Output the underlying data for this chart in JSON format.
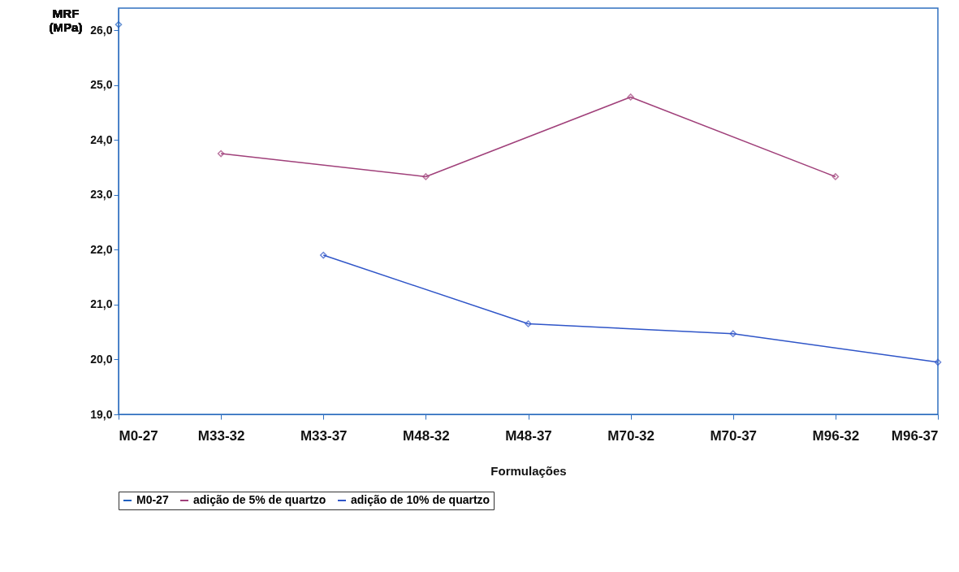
{
  "chart_data": {
    "type": "line",
    "ylabel": "MRF\n(MPa)",
    "xlabel": "Formulações",
    "categories": [
      "M0-27",
      "M33-32",
      "M33-37",
      "M48-32",
      "M48-37",
      "M70-32",
      "M70-37",
      "M96-32",
      "M96-37"
    ],
    "series": [
      {
        "name": "M0-27",
        "color": "#1f5fbf",
        "values": [
          26.1,
          null,
          null,
          null,
          null,
          null,
          null,
          null,
          null
        ]
      },
      {
        "name": "adição de 5% de quartzo",
        "color": "#a0407a",
        "values": [
          null,
          23.75,
          null,
          23.33,
          null,
          24.78,
          null,
          23.33,
          null
        ]
      },
      {
        "name": "adição de 10% de quartzo",
        "color": "#2f55c8",
        "values": [
          null,
          null,
          21.9,
          null,
          20.65,
          null,
          20.47,
          null,
          19.95
        ]
      }
    ],
    "ylim": [
      19,
      26.4
    ],
    "yticks": [
      {
        "value": 19,
        "label": "19,0"
      },
      {
        "value": 20,
        "label": "20,0"
      },
      {
        "value": 21,
        "label": "21,0"
      },
      {
        "value": 22,
        "label": "22,0"
      },
      {
        "value": 23,
        "label": "23,0"
      },
      {
        "value": 24,
        "label": "24,0"
      },
      {
        "value": 25,
        "label": "25,0"
      },
      {
        "value": 26,
        "label": "26,0"
      }
    ],
    "grid": false,
    "legend": "bottom",
    "marker": "diamond",
    "line_style": "solid"
  }
}
